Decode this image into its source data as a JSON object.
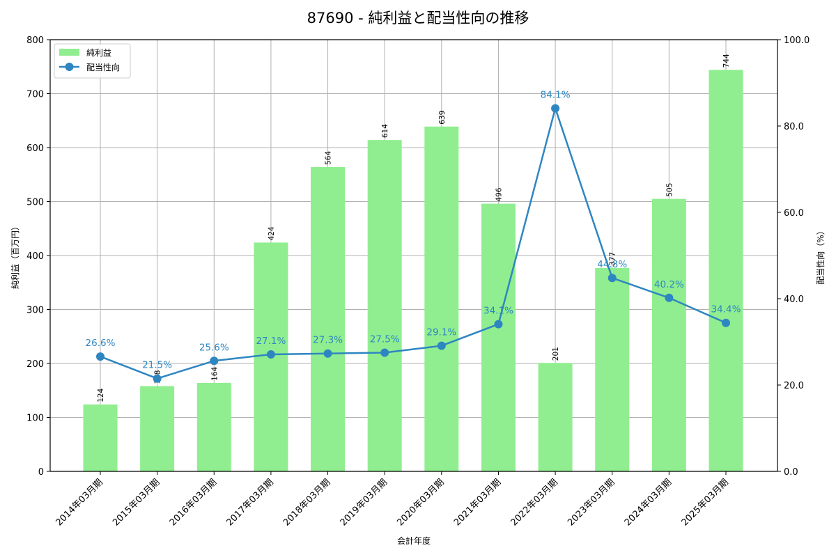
{
  "chart_data": {
    "type": "bar",
    "title": "87690 - 純利益と配当性向の推移",
    "xlabel": "会計年度",
    "ylabel": "純利益（百万円）",
    "ylabel_right": "配当性向（%）",
    "ylim": [
      0,
      800
    ],
    "ylim_right": [
      0,
      100
    ],
    "yticks": [
      0,
      100,
      200,
      300,
      400,
      500,
      600,
      700,
      800
    ],
    "yticks_right": [
      "0.0",
      "20.0",
      "40.0",
      "60.0",
      "80.0",
      "100.0"
    ],
    "grid": true,
    "legend_position": "upper left",
    "categories": [
      "2014年03月期",
      "2015年03月期",
      "2016年03月期",
      "2017年03月期",
      "2018年03月期",
      "2019年03月期",
      "2020年03月期",
      "2021年03月期",
      "2022年03月期",
      "2023年03月期",
      "2024年03月期",
      "2025年03月期"
    ],
    "series": [
      {
        "name": "純利益",
        "type": "bar",
        "axis": "left",
        "color": "#90ee90",
        "values": [
          124,
          158,
          164,
          424,
          564,
          614,
          639,
          496,
          201,
          377,
          505,
          744
        ]
      },
      {
        "name": "配当性向",
        "type": "line",
        "axis": "right",
        "color": "#2e86c1",
        "values": [
          26.6,
          21.5,
          25.6,
          27.1,
          27.3,
          27.5,
          29.1,
          34.1,
          84.1,
          44.8,
          40.2,
          34.4
        ],
        "labels": [
          "26.6%",
          "21.5%",
          "25.6%",
          "27.1%",
          "27.3%",
          "27.5%",
          "29.1%",
          "34.1%",
          "84.1%",
          "44.8%",
          "40.2%",
          "34.4%"
        ]
      }
    ]
  }
}
